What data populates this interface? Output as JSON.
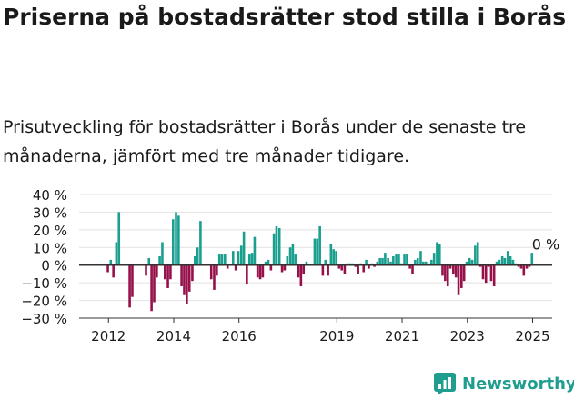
{
  "title": "Priserna på bostadsrätter stod stilla i Borås",
  "subtitle": "Prisutveckling för bostadsrätter i Borås under de senaste tre månaderna, jämfört med tre månader tidigare.",
  "brand": "Newsworthy",
  "colors": {
    "positive": "#1a9f8f",
    "negative": "#96104a",
    "grid": "#e2e2e2",
    "axis": "#333333",
    "text": "#1a1a1a"
  },
  "chart_data": {
    "type": "bar",
    "title": "",
    "xlabel": "",
    "ylabel": "",
    "ylim": [
      -30,
      40
    ],
    "y_ticks": [
      40,
      30,
      20,
      10,
      0,
      -10,
      -20,
      -30
    ],
    "y_tick_labels": [
      "40 %",
      "30 %",
      "20 %",
      "10 %",
      "0 %",
      "−10 %",
      "−20 %",
      "−30 %"
    ],
    "x_ticks": [
      {
        "label": "2012",
        "x": 2012
      },
      {
        "label": "2014",
        "x": 2014
      },
      {
        "label": "2016",
        "x": 2016
      },
      {
        "label": "2019",
        "x": 2019
      },
      {
        "label": "2021",
        "x": 2021
      },
      {
        "label": "2023",
        "x": 2023
      },
      {
        "label": "2025",
        "x": 2025
      }
    ],
    "x_range": [
      2011.1,
      2025.6
    ],
    "annotation": "0 %",
    "grid": true,
    "bars": [
      {
        "x": 2011.98,
        "value": -4
      },
      {
        "x": 2012.07,
        "value": 3
      },
      {
        "x": 2012.15,
        "value": -7
      },
      {
        "x": 2012.24,
        "value": 13
      },
      {
        "x": 2012.32,
        "value": 30
      },
      {
        "x": 2012.65,
        "value": -24
      },
      {
        "x": 2012.73,
        "value": -18
      },
      {
        "x": 2013.15,
        "value": -6
      },
      {
        "x": 2013.24,
        "value": 4
      },
      {
        "x": 2013.32,
        "value": -26
      },
      {
        "x": 2013.4,
        "value": -21
      },
      {
        "x": 2013.48,
        "value": -7
      },
      {
        "x": 2013.57,
        "value": 5
      },
      {
        "x": 2013.65,
        "value": 13
      },
      {
        "x": 2013.73,
        "value": -8
      },
      {
        "x": 2013.82,
        "value": -13
      },
      {
        "x": 2013.9,
        "value": -8
      },
      {
        "x": 2013.98,
        "value": 26
      },
      {
        "x": 2014.07,
        "value": 30
      },
      {
        "x": 2014.15,
        "value": 28
      },
      {
        "x": 2014.24,
        "value": -12
      },
      {
        "x": 2014.32,
        "value": -17
      },
      {
        "x": 2014.4,
        "value": -22
      },
      {
        "x": 2014.48,
        "value": -15
      },
      {
        "x": 2014.57,
        "value": -9
      },
      {
        "x": 2014.65,
        "value": 5
      },
      {
        "x": 2014.73,
        "value": 10
      },
      {
        "x": 2014.82,
        "value": 25
      },
      {
        "x": 2015.15,
        "value": -8
      },
      {
        "x": 2015.24,
        "value": -14
      },
      {
        "x": 2015.32,
        "value": -6
      },
      {
        "x": 2015.4,
        "value": 6
      },
      {
        "x": 2015.48,
        "value": 6
      },
      {
        "x": 2015.57,
        "value": 6
      },
      {
        "x": 2015.65,
        "value": -2
      },
      {
        "x": 2015.82,
        "value": 8
      },
      {
        "x": 2015.9,
        "value": -3
      },
      {
        "x": 2015.98,
        "value": 8
      },
      {
        "x": 2016.07,
        "value": 11
      },
      {
        "x": 2016.15,
        "value": 19
      },
      {
        "x": 2016.24,
        "value": -11
      },
      {
        "x": 2016.32,
        "value": 6
      },
      {
        "x": 2016.4,
        "value": 7
      },
      {
        "x": 2016.48,
        "value": 16
      },
      {
        "x": 2016.57,
        "value": -7
      },
      {
        "x": 2016.65,
        "value": -8
      },
      {
        "x": 2016.73,
        "value": -7
      },
      {
        "x": 2016.82,
        "value": 2
      },
      {
        "x": 2016.9,
        "value": 3
      },
      {
        "x": 2016.98,
        "value": -3
      },
      {
        "x": 2017.07,
        "value": 18
      },
      {
        "x": 2017.15,
        "value": 22
      },
      {
        "x": 2017.24,
        "value": 21
      },
      {
        "x": 2017.32,
        "value": -4
      },
      {
        "x": 2017.4,
        "value": -3
      },
      {
        "x": 2017.48,
        "value": 5
      },
      {
        "x": 2017.57,
        "value": 10
      },
      {
        "x": 2017.65,
        "value": 12
      },
      {
        "x": 2017.73,
        "value": 6
      },
      {
        "x": 2017.82,
        "value": -7
      },
      {
        "x": 2017.9,
        "value": -12
      },
      {
        "x": 2017.98,
        "value": -5
      },
      {
        "x": 2018.07,
        "value": 2
      },
      {
        "x": 2018.32,
        "value": 15
      },
      {
        "x": 2018.4,
        "value": 15
      },
      {
        "x": 2018.48,
        "value": 22
      },
      {
        "x": 2018.57,
        "value": -6
      },
      {
        "x": 2018.65,
        "value": 3
      },
      {
        "x": 2018.73,
        "value": -6
      },
      {
        "x": 2018.82,
        "value": 12
      },
      {
        "x": 2018.9,
        "value": 9
      },
      {
        "x": 2018.98,
        "value": 8
      },
      {
        "x": 2019.07,
        "value": -2
      },
      {
        "x": 2019.15,
        "value": -3
      },
      {
        "x": 2019.24,
        "value": -5
      },
      {
        "x": 2019.32,
        "value": 1
      },
      {
        "x": 2019.4,
        "value": 1
      },
      {
        "x": 2019.48,
        "value": 1
      },
      {
        "x": 2019.57,
        "value": -1
      },
      {
        "x": 2019.65,
        "value": -5
      },
      {
        "x": 2019.73,
        "value": 1
      },
      {
        "x": 2019.82,
        "value": -4
      },
      {
        "x": 2019.9,
        "value": 3
      },
      {
        "x": 2019.98,
        "value": -2
      },
      {
        "x": 2020.07,
        "value": 1
      },
      {
        "x": 2020.15,
        "value": -1
      },
      {
        "x": 2020.24,
        "value": 2
      },
      {
        "x": 2020.32,
        "value": 4
      },
      {
        "x": 2020.4,
        "value": 4
      },
      {
        "x": 2020.48,
        "value": 7
      },
      {
        "x": 2020.57,
        "value": 4
      },
      {
        "x": 2020.65,
        "value": 2
      },
      {
        "x": 2020.73,
        "value": 5
      },
      {
        "x": 2020.82,
        "value": 6
      },
      {
        "x": 2020.9,
        "value": 6
      },
      {
        "x": 2020.98,
        "value": 1
      },
      {
        "x": 2021.07,
        "value": 6
      },
      {
        "x": 2021.15,
        "value": 6
      },
      {
        "x": 2021.24,
        "value": -2
      },
      {
        "x": 2021.32,
        "value": -5
      },
      {
        "x": 2021.4,
        "value": 3
      },
      {
        "x": 2021.48,
        "value": 4
      },
      {
        "x": 2021.57,
        "value": 8
      },
      {
        "x": 2021.65,
        "value": 2
      },
      {
        "x": 2021.73,
        "value": 2
      },
      {
        "x": 2021.82,
        "value": 1
      },
      {
        "x": 2021.9,
        "value": 3
      },
      {
        "x": 2021.98,
        "value": 7
      },
      {
        "x": 2022.07,
        "value": 13
      },
      {
        "x": 2022.15,
        "value": 12
      },
      {
        "x": 2022.24,
        "value": -6
      },
      {
        "x": 2022.32,
        "value": -9
      },
      {
        "x": 2022.4,
        "value": -12
      },
      {
        "x": 2022.48,
        "value": -2
      },
      {
        "x": 2022.57,
        "value": -5
      },
      {
        "x": 2022.65,
        "value": -7
      },
      {
        "x": 2022.73,
        "value": -17
      },
      {
        "x": 2022.82,
        "value": -13
      },
      {
        "x": 2022.9,
        "value": -9
      },
      {
        "x": 2022.98,
        "value": 2
      },
      {
        "x": 2023.07,
        "value": 4
      },
      {
        "x": 2023.15,
        "value": 3
      },
      {
        "x": 2023.24,
        "value": 11
      },
      {
        "x": 2023.32,
        "value": 13
      },
      {
        "x": 2023.4,
        "value": -1
      },
      {
        "x": 2023.48,
        "value": -8
      },
      {
        "x": 2023.57,
        "value": -10
      },
      {
        "x": 2023.65,
        "value": -1
      },
      {
        "x": 2023.73,
        "value": -9
      },
      {
        "x": 2023.82,
        "value": -12
      },
      {
        "x": 2023.9,
        "value": 2
      },
      {
        "x": 2023.98,
        "value": 3
      },
      {
        "x": 2024.07,
        "value": 5
      },
      {
        "x": 2024.15,
        "value": 4
      },
      {
        "x": 2024.24,
        "value": 8
      },
      {
        "x": 2024.32,
        "value": 5
      },
      {
        "x": 2024.4,
        "value": 3
      },
      {
        "x": 2024.48,
        "value": 1
      },
      {
        "x": 2024.57,
        "value": -1
      },
      {
        "x": 2024.65,
        "value": -2
      },
      {
        "x": 2024.73,
        "value": -6
      },
      {
        "x": 2024.82,
        "value": -2
      },
      {
        "x": 2024.9,
        "value": -1
      },
      {
        "x": 2024.98,
        "value": 7
      },
      {
        "x": 2025.07,
        "value": 0
      }
    ]
  }
}
